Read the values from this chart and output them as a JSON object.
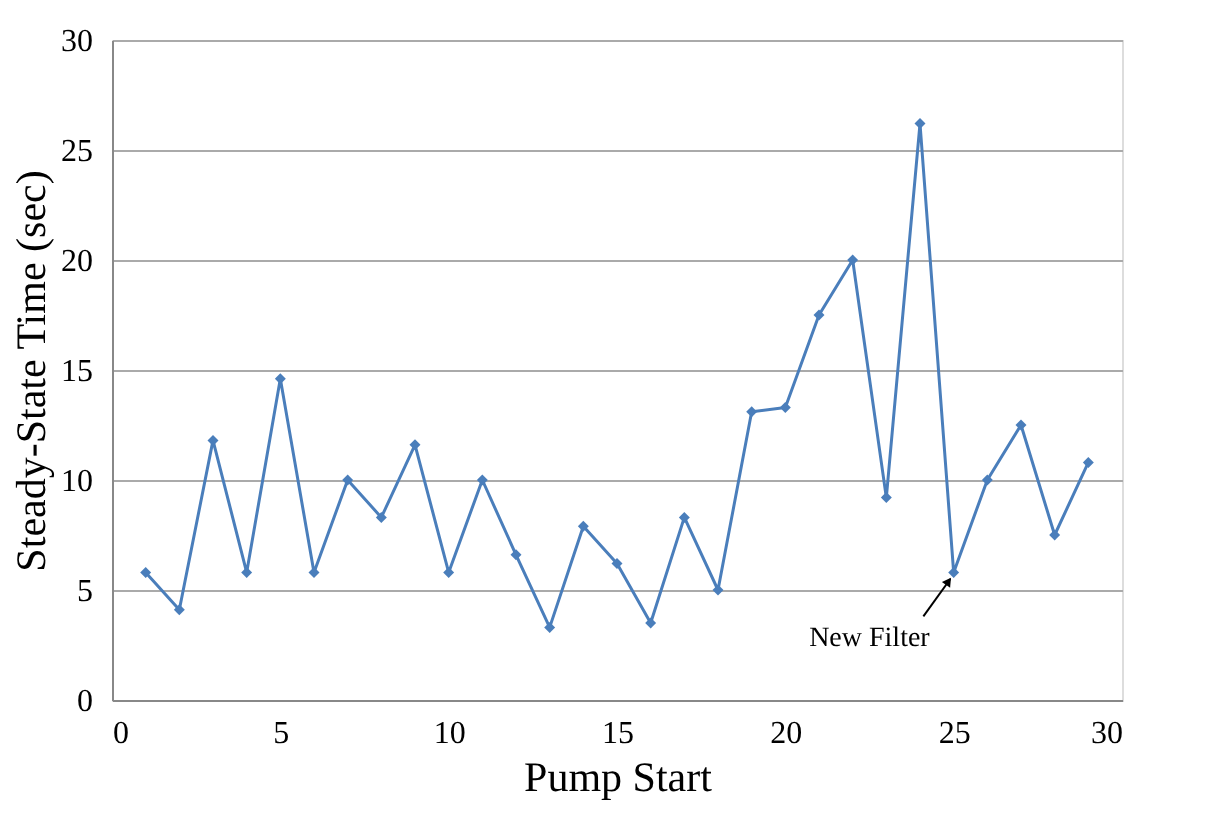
{
  "chart_data": {
    "type": "line",
    "xlabel": "Pump Start",
    "ylabel": "Steady-State Time (sec)",
    "x": [
      1,
      2,
      3,
      4,
      5,
      6,
      7,
      8,
      9,
      10,
      11,
      12,
      13,
      14,
      15,
      16,
      17,
      18,
      19,
      20,
      21,
      22,
      23,
      24,
      25,
      26,
      27,
      28,
      29
    ],
    "series": [
      {
        "color": "#4a7ebb",
        "values": [
          5.8,
          4.1,
          11.8,
          5.8,
          14.6,
          5.8,
          10,
          8.3,
          11.6,
          5.8,
          10,
          6.6,
          3.3,
          7.9,
          6.2,
          3.5,
          8.3,
          5,
          13.1,
          13.3,
          17.5,
          20,
          9.2,
          26.2,
          5.8,
          10,
          12.5,
          7.5,
          10.8
        ]
      }
    ],
    "xlim": [
      0,
      30
    ],
    "xticks": [
      0,
      5,
      10,
      15,
      20,
      25,
      30
    ],
    "ylim": [
      0,
      30
    ],
    "yticks": [
      0,
      5,
      10,
      15,
      20,
      25,
      30
    ],
    "grid": "y",
    "marker": "diamond",
    "line_style": "solid",
    "annotations": [
      {
        "text": "New Filter",
        "x": 25,
        "y": 5.8
      }
    ]
  }
}
